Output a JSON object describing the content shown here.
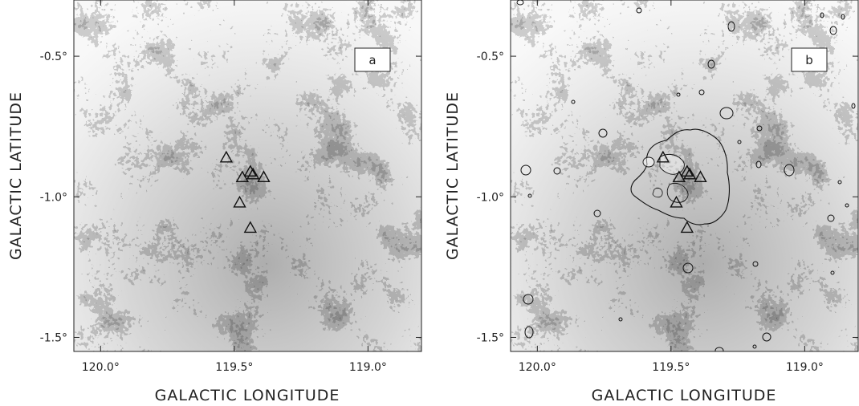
{
  "panels": [
    {
      "id": "a",
      "label": "a",
      "xlabel": "GALACTIC LONGITUDE",
      "ylabel": "GALACTIC LATITUDE",
      "xticks": [
        "120.0°",
        "119.5°",
        "119.0°"
      ],
      "yticks": [
        "-0.5°",
        "-1.0°",
        "-1.5°"
      ],
      "has_contours": false
    },
    {
      "id": "b",
      "label": "b",
      "xlabel": "GALACTIC LONGITUDE",
      "ylabel": "GALACTIC LATITUDE",
      "xticks": [
        "120.0°",
        "119.5°",
        "119.0°"
      ],
      "yticks": [
        "-0.5°",
        "-1.0°",
        "-1.5°"
      ],
      "has_contours": true
    }
  ],
  "chart_data": {
    "type": "image",
    "x_axis": {
      "label": "GALACTIC LONGITUDE",
      "range": [
        120.1,
        118.8
      ],
      "ticks": [
        120.0,
        119.5,
        119.0
      ],
      "direction": "decreasing"
    },
    "y_axis": {
      "label": "GALACTIC LATITUDE",
      "range": [
        -1.55,
        -0.3
      ],
      "ticks": [
        -0.5,
        -1.0,
        -1.5
      ]
    },
    "markers": {
      "shape": "triangle",
      "points": [
        {
          "l": 119.53,
          "b": -0.86
        },
        {
          "l": 119.47,
          "b": -0.93
        },
        {
          "l": 119.44,
          "b": -0.91
        },
        {
          "l": 119.43,
          "b": -0.92
        },
        {
          "l": 119.39,
          "b": -0.93
        },
        {
          "l": 119.48,
          "b": -1.02
        },
        {
          "l": 119.44,
          "b": -1.11
        }
      ]
    },
    "background": "greyscale emission map"
  }
}
